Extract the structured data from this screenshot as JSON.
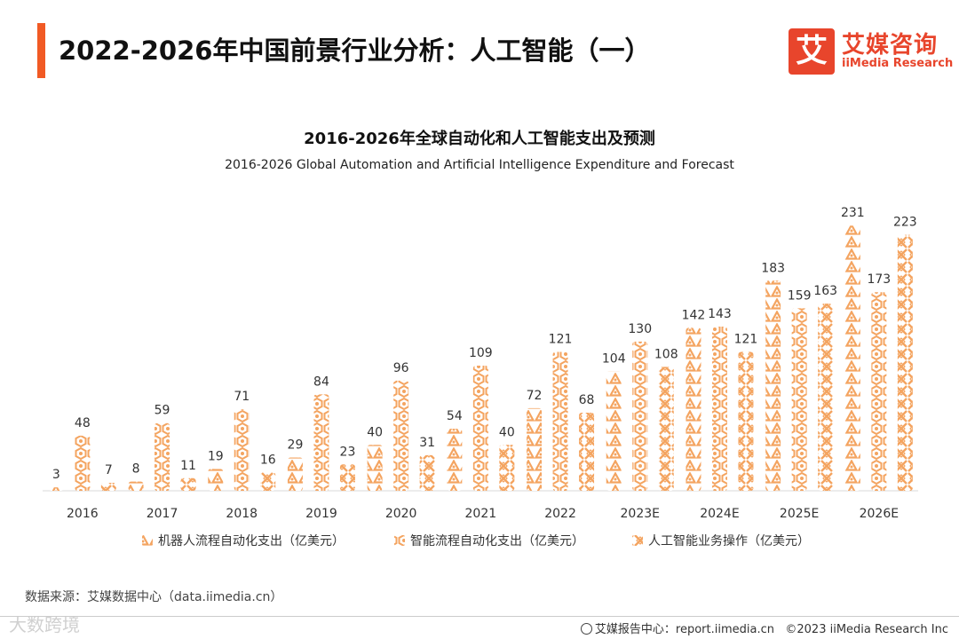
{
  "header": {
    "title": "2022-2026年中国前景行业分析：人工智能（一）",
    "accent_color": "#f15a24"
  },
  "logo": {
    "mark": "艾",
    "name_cn": "艾媒咨询",
    "name_en": "iiMedia Research",
    "color": "#e8452c"
  },
  "chart_data": {
    "type": "bar",
    "title": "2016-2026年全球自动化和人工智能支出及预测",
    "subtitle": "2016-2026 Global Automation and Artificial Intelligence Expenditure and Forecast",
    "categories": [
      "2016",
      "2017",
      "2018",
      "2019",
      "2020",
      "2021",
      "2022",
      "2023E",
      "2024E",
      "2025E",
      "2026E"
    ],
    "series": [
      {
        "name": "机器人流程自动化支出（亿美元）",
        "values": [
          3,
          8,
          19,
          29,
          40,
          54,
          72,
          104,
          142,
          183,
          231
        ],
        "color": "#f4a460",
        "pattern": "triangle-knot"
      },
      {
        "name": "智能流程自动化支出（亿美元）",
        "values": [
          48,
          59,
          71,
          84,
          96,
          109,
          121,
          130,
          143,
          159,
          173
        ],
        "color": "#f4a460",
        "pattern": "hexagon-knot"
      },
      {
        "name": "人工智能业务操作（亿美元）",
        "values": [
          7,
          11,
          16,
          23,
          31,
          40,
          68,
          108,
          121,
          163,
          223
        ],
        "color": "#f4a460",
        "pattern": "x-chain"
      }
    ],
    "ylim": [
      0,
      240
    ],
    "grid": false,
    "legend_position": "bottom",
    "data_labels": true
  },
  "footer": {
    "source": "数据来源：艾媒数据中心（data.iimedia.cn）",
    "report_center": "艾媒报告中心：report.iimedia.cn",
    "copyright": "©2023  iiMedia Research  Inc",
    "watermark": "大数跨境"
  }
}
